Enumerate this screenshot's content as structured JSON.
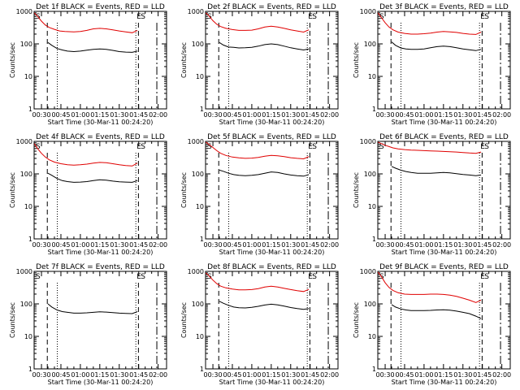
{
  "colors": {
    "events": "#000000",
    "lld": "#e00000",
    "axis": "#000000",
    "background": "#ffffff"
  },
  "shared": {
    "xlabel": "Start Time (30-Mar-11 00:24:20)",
    "ylabel": "Counts/sec",
    "x_tick_labels": [
      "00:30",
      "00:45",
      "01:00",
      "01:15",
      "01:30",
      "01:45",
      "02:00"
    ],
    "x_tick_values": [
      30,
      45,
      60,
      75,
      90,
      105,
      120
    ],
    "x_range_minutes_after_midnight": [
      24.33,
      126.5
    ],
    "y_tick_labels": [
      "1",
      "10",
      "100",
      "1000"
    ],
    "y_tick_values": [
      1,
      10,
      100,
      1000
    ],
    "y_range": [
      1,
      1000
    ],
    "y_scale": "log",
    "saa_marker_left": "S",
    "saa_marker_right": "S",
    "eclipse_marker": "E",
    "dashed_lines_at": [
      34.5,
      104.8
    ],
    "dotted_lines_at": [
      42.2,
      102.8
    ],
    "long_dashed_at": 119.0
  },
  "chart_data": [
    {
      "type": "line",
      "title": "Det 1f BLACK = Events, RED = LLD",
      "series": [
        {
          "name": "Events",
          "x": [
            35,
            38,
            42,
            46,
            50,
            55,
            60,
            65,
            70,
            75,
            80,
            85,
            90,
            95,
            100,
            104
          ],
          "y": [
            110,
            90,
            72,
            65,
            60,
            58,
            60,
            64,
            68,
            70,
            68,
            63,
            58,
            56,
            55,
            60
          ]
        },
        {
          "name": "LLD",
          "x": [
            24.5,
            27,
            30,
            33,
            36,
            40,
            44,
            48,
            55,
            60,
            65,
            70,
            75,
            80,
            85,
            90,
            95,
            100,
            104
          ],
          "y": [
            900,
            700,
            500,
            380,
            320,
            280,
            250,
            240,
            235,
            240,
            260,
            290,
            300,
            290,
            270,
            250,
            235,
            220,
            260
          ]
        }
      ]
    },
    {
      "type": "line",
      "title": "Det 2f BLACK = Events, RED = LLD",
      "series": [
        {
          "name": "Events",
          "x": [
            35,
            38,
            42,
            46,
            50,
            55,
            60,
            65,
            70,
            75,
            80,
            85,
            90,
            95,
            100,
            104
          ],
          "y": [
            110,
            92,
            80,
            78,
            75,
            76,
            78,
            85,
            95,
            100,
            95,
            85,
            76,
            70,
            65,
            70
          ]
        },
        {
          "name": "LLD",
          "x": [
            24.5,
            27,
            30,
            33,
            36,
            40,
            45,
            50,
            55,
            60,
            65,
            70,
            75,
            80,
            85,
            90,
            95,
            100,
            104
          ],
          "y": [
            900,
            720,
            520,
            400,
            340,
            300,
            275,
            260,
            260,
            265,
            290,
            330,
            350,
            330,
            300,
            270,
            250,
            230,
            270
          ]
        }
      ]
    },
    {
      "type": "line",
      "title": "Det 3f BLACK = Events, RED = LLD",
      "series": [
        {
          "name": "Events",
          "x": [
            35,
            38,
            42,
            46,
            50,
            55,
            60,
            65,
            70,
            75,
            80,
            85,
            90,
            95,
            100,
            104
          ],
          "y": [
            115,
            90,
            75,
            70,
            68,
            68,
            70,
            76,
            82,
            85,
            82,
            76,
            70,
            66,
            62,
            68
          ]
        },
        {
          "name": "LLD",
          "x": [
            24.5,
            27,
            30,
            33,
            36,
            40,
            45,
            50,
            55,
            60,
            65,
            70,
            75,
            80,
            85,
            90,
            95,
            100,
            104
          ],
          "y": [
            900,
            650,
            450,
            330,
            270,
            230,
            210,
            200,
            200,
            205,
            215,
            230,
            240,
            235,
            225,
            210,
            200,
            195,
            230
          ]
        }
      ]
    },
    {
      "type": "line",
      "title": "Det 4f BLACK = Events, RED = LLD",
      "series": [
        {
          "name": "Events",
          "x": [
            35,
            38,
            42,
            46,
            50,
            55,
            60,
            65,
            70,
            75,
            80,
            85,
            90,
            95,
            100,
            104
          ],
          "y": [
            105,
            90,
            72,
            62,
            58,
            55,
            56,
            58,
            62,
            66,
            64,
            60,
            57,
            56,
            55,
            62
          ]
        },
        {
          "name": "LLD",
          "x": [
            24.5,
            27,
            30,
            33,
            36,
            40,
            45,
            50,
            55,
            60,
            65,
            70,
            75,
            80,
            85,
            90,
            95,
            100,
            104
          ],
          "y": [
            850,
            600,
            430,
            330,
            270,
            230,
            205,
            190,
            185,
            190,
            200,
            215,
            225,
            220,
            205,
            190,
            180,
            175,
            215
          ]
        }
      ]
    },
    {
      "type": "line",
      "title": "Det 5f BLACK = Events, RED = LLD",
      "series": [
        {
          "name": "Events",
          "x": [
            35,
            38,
            42,
            46,
            50,
            55,
            60,
            65,
            70,
            75,
            80,
            85,
            90,
            95,
            100,
            104
          ],
          "y": [
            130,
            120,
            105,
            95,
            90,
            88,
            90,
            95,
            105,
            115,
            110,
            100,
            92,
            88,
            85,
            95
          ]
        },
        {
          "name": "LLD",
          "x": [
            24.5,
            27,
            30,
            33,
            36,
            40,
            45,
            50,
            55,
            60,
            65,
            70,
            75,
            80,
            85,
            90,
            95,
            100,
            104
          ],
          "y": [
            950,
            800,
            650,
            520,
            430,
            370,
            330,
            310,
            300,
            305,
            320,
            350,
            370,
            360,
            340,
            315,
            300,
            290,
            340
          ]
        }
      ]
    },
    {
      "type": "line",
      "title": "Det 6f BLACK = Events, RED = LLD",
      "series": [
        {
          "name": "Events",
          "x": [
            35,
            38,
            42,
            46,
            50,
            55,
            60,
            65,
            70,
            75,
            80,
            85,
            90,
            95,
            100,
            104
          ],
          "y": [
            170,
            150,
            130,
            118,
            110,
            105,
            104,
            105,
            108,
            110,
            108,
            102,
            96,
            92,
            88,
            92
          ]
        },
        {
          "name": "LLD",
          "x": [
            24.5,
            27,
            30,
            33,
            36,
            40,
            45,
            50,
            55,
            60,
            65,
            70,
            75,
            80,
            85,
            90,
            95,
            100,
            104
          ],
          "y": [
            950,
            850,
            760,
            690,
            630,
            590,
            560,
            540,
            530,
            520,
            510,
            500,
            490,
            480,
            470,
            455,
            440,
            430,
            470
          ]
        }
      ]
    },
    {
      "type": "line",
      "title": "Det 7f BLACK = Events, RED = LLD",
      "series": [
        {
          "name": "Events",
          "x": [
            35,
            38,
            42,
            46,
            50,
            55,
            60,
            65,
            70,
            75,
            80,
            85,
            90,
            95,
            100,
            104
          ],
          "y": [
            100,
            80,
            65,
            58,
            55,
            52,
            52,
            53,
            55,
            57,
            56,
            54,
            52,
            51,
            50,
            58
          ]
        }
      ]
    },
    {
      "type": "line",
      "title": "Det 8f BLACK = Events, RED = LLD",
      "series": [
        {
          "name": "Events",
          "x": [
            35,
            38,
            42,
            46,
            50,
            55,
            60,
            65,
            70,
            75,
            80,
            85,
            90,
            95,
            100,
            104
          ],
          "y": [
            120,
            105,
            90,
            80,
            76,
            75,
            78,
            84,
            92,
            98,
            93,
            85,
            77,
            72,
            68,
            72
          ]
        },
        {
          "name": "LLD",
          "x": [
            24.5,
            27,
            30,
            33,
            36,
            40,
            45,
            50,
            55,
            60,
            65,
            70,
            75,
            80,
            85,
            90,
            95,
            100,
            104
          ],
          "y": [
            900,
            720,
            540,
            420,
            350,
            310,
            285,
            270,
            270,
            275,
            295,
            330,
            350,
            330,
            300,
            275,
            255,
            240,
            280
          ]
        }
      ]
    },
    {
      "type": "line",
      "title": "Det 9f BLACK = Events, RED = LLD",
      "series": [
        {
          "name": "Events",
          "x": [
            35,
            38,
            42,
            46,
            50,
            55,
            60,
            65,
            70,
            75,
            80,
            85,
            90,
            95,
            100,
            104
          ],
          "y": [
            95,
            80,
            70,
            65,
            62,
            62,
            62,
            63,
            65,
            66,
            64,
            60,
            55,
            50,
            42,
            35
          ]
        },
        {
          "name": "LLD",
          "x": [
            24.5,
            27,
            30,
            33,
            36,
            40,
            45,
            50,
            55,
            60,
            65,
            70,
            75,
            80,
            85,
            90,
            95,
            100,
            104
          ],
          "y": [
            950,
            700,
            450,
            320,
            260,
            220,
            200,
            195,
            195,
            195,
            200,
            200,
            195,
            185,
            170,
            150,
            130,
            110,
            130
          ]
        }
      ]
    }
  ]
}
